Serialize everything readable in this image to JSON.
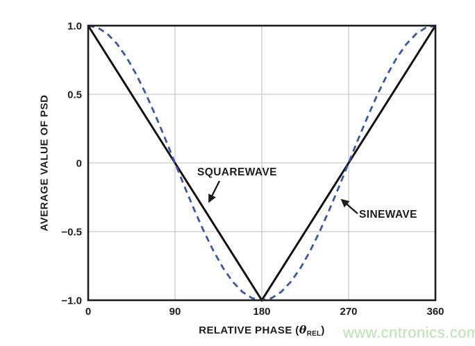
{
  "watermark": {
    "text": "www.cntronics.com",
    "color": "#b6e3ac"
  },
  "chart_data": {
    "type": "line",
    "title": "",
    "xlabel": "RELATIVE PHASE (θREL)",
    "xlabel_parts": {
      "prefix": "RELATIVE PHASE (",
      "theta": "θ",
      "subscript": "REL",
      "suffix": ")"
    },
    "ylabel": "AVERAGE VALUE OF PSD",
    "xlim": [
      0,
      360
    ],
    "ylim": [
      -1,
      1
    ],
    "grid": true,
    "legend": "none (inline annotations with arrows)",
    "background": "#ffffff",
    "axis_color": "#1c1c1c",
    "grid_color": "#c9cacd",
    "xticks": {
      "values": [
        0,
        90,
        180,
        270,
        360
      ],
      "labels": [
        "0",
        "90",
        "180",
        "270",
        "360"
      ]
    },
    "yticks": {
      "values": [
        1.0,
        0.5,
        0,
        -0.5,
        -1.0
      ],
      "labels": [
        "1.0",
        "0.5",
        "0",
        "−0.5",
        "−1.0"
      ]
    },
    "series": [
      {
        "name": "SQUAREWAVE",
        "style": "solid",
        "color": "#111111",
        "stroke_width": 3,
        "x": [
          0,
          180,
          360
        ],
        "y": [
          1,
          -1,
          1
        ]
      },
      {
        "name": "SINEWAVE",
        "style": "dashed",
        "color": "#3a56a7",
        "stroke_width": 2.8,
        "dash": "9 6.5",
        "x": [
          0,
          10,
          20,
          30,
          40,
          50,
          60,
          70,
          80,
          90,
          100,
          110,
          120,
          130,
          140,
          150,
          160,
          170,
          180,
          190,
          200,
          210,
          220,
          230,
          240,
          250,
          260,
          270,
          280,
          290,
          300,
          310,
          320,
          330,
          340,
          350,
          360
        ],
        "y": [
          1,
          0.985,
          0.94,
          0.866,
          0.766,
          0.643,
          0.5,
          0.342,
          0.174,
          0,
          -0.174,
          -0.342,
          -0.5,
          -0.643,
          -0.766,
          -0.866,
          -0.94,
          -0.985,
          -1,
          -0.985,
          -0.94,
          -0.866,
          -0.766,
          -0.643,
          -0.5,
          -0.342,
          -0.174,
          0,
          0.174,
          0.342,
          0.5,
          0.643,
          0.766,
          0.866,
          0.94,
          0.985,
          1
        ]
      }
    ],
    "annotations": [
      {
        "label": "SQUAREWAVE",
        "points_to_series": "SQUAREWAVE"
      },
      {
        "label": "SINEWAVE",
        "points_to_series": "SINEWAVE"
      }
    ]
  }
}
